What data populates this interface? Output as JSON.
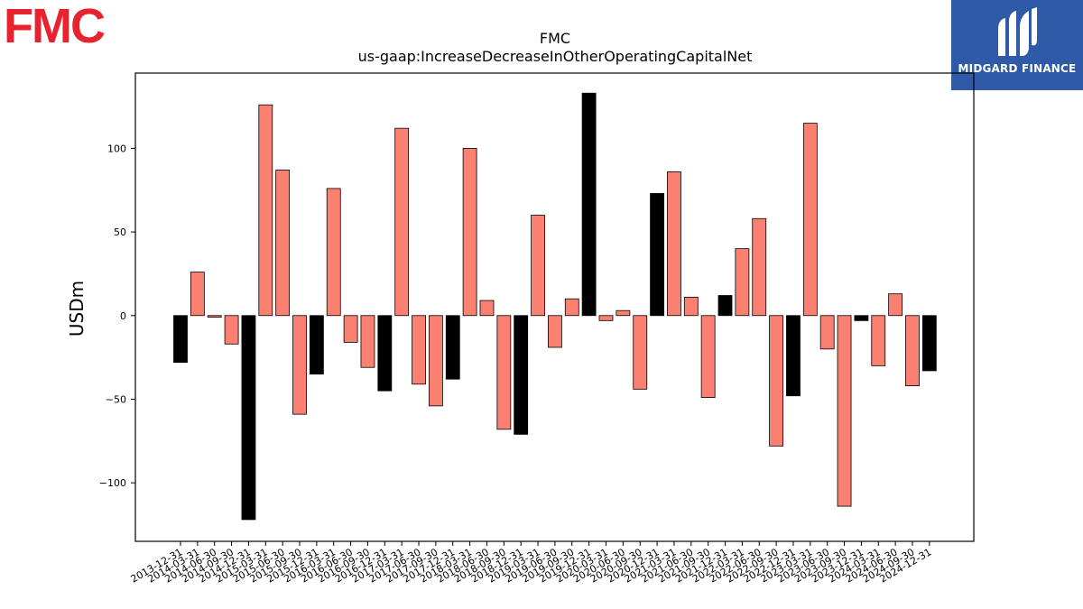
{
  "logos": {
    "left_text": "FMC",
    "right_text": "MIDGARD FINANCE"
  },
  "colors": {
    "positive": "#fa8072",
    "negative_main": "#fa8072",
    "highlight": "#000000",
    "brand_red": "#e8232f",
    "brand_blue": "#2f5aa8"
  },
  "chart_data": {
    "type": "bar",
    "title": "FMC",
    "subtitle": "us-gaap:IncreaseDecreaseInOtherOperatingCapitalNet",
    "xlabel": "",
    "ylabel": "USDm",
    "ylim": [
      -135,
      145
    ],
    "yticks": [
      -100,
      -50,
      0,
      50,
      100
    ],
    "ytick_labels": [
      "−100",
      "−50",
      "0",
      "50",
      "100"
    ],
    "grid": false,
    "categories": [
      "2013-12-31",
      "2014-03-31",
      "2014-06-30",
      "2014-09-30",
      "2014-12-31",
      "2015-03-31",
      "2015-06-30",
      "2015-09-30",
      "2015-12-31",
      "2016-03-31",
      "2016-06-30",
      "2016-09-30",
      "2016-12-31",
      "2017-03-31",
      "2017-06-30",
      "2017-09-30",
      "2017-12-31",
      "2018-03-31",
      "2018-06-30",
      "2018-09-30",
      "2018-12-31",
      "2019-03-31",
      "2019-06-30",
      "2019-09-30",
      "2019-12-31",
      "2020-03-31",
      "2020-06-30",
      "2020-09-30",
      "2020-12-31",
      "2021-03-31",
      "2021-06-30",
      "2021-09-30",
      "2021-12-31",
      "2022-03-31",
      "2022-06-30",
      "2022-09-30",
      "2022-12-31",
      "2023-03-31",
      "2023-06-30",
      "2023-09-30",
      "2023-12-31",
      "2024-03-31",
      "2024-06-30",
      "2024-09-30",
      "2024-12-31"
    ],
    "values": [
      -28,
      26,
      -1,
      -17,
      -122,
      126,
      87,
      -59,
      -35,
      76,
      -16,
      -31,
      -45,
      112,
      -41,
      -54,
      -38,
      100,
      9,
      -68,
      -71,
      60,
      -19,
      10,
      133,
      -3,
      3,
      -44,
      73,
      86,
      11,
      -49,
      12,
      40,
      58,
      -78,
      -48,
      115,
      -20,
      -114,
      -3,
      -30,
      13,
      -42,
      -33
    ],
    "highlight_fourth_quarter": true
  }
}
